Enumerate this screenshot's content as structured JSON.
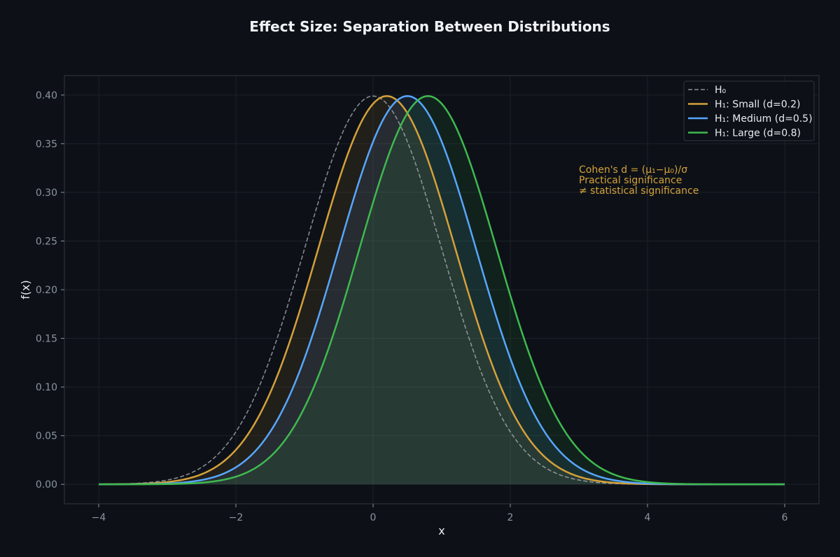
{
  "chart_data": {
    "type": "line",
    "title": "Effect Size: Separation Between Distributions",
    "xlabel": "x",
    "ylabel": "f(x)",
    "xlim": [
      -4.5,
      6.5
    ],
    "ylim": [
      -0.02,
      0.42
    ],
    "xticks": [
      -4,
      -2,
      0,
      2,
      4,
      6
    ],
    "xtick_labels": [
      "−4",
      "−2",
      "0",
      "2",
      "4",
      "6"
    ],
    "yticks": [
      0.0,
      0.05,
      0.1,
      0.15,
      0.2,
      0.25,
      0.3,
      0.35,
      0.4
    ],
    "ytick_labels": [
      "0.00",
      "0.05",
      "0.10",
      "0.15",
      "0.20",
      "0.25",
      "0.30",
      "0.35",
      "0.40"
    ],
    "grid": true,
    "legend_position": "top-right",
    "x_range": [
      -4,
      6
    ],
    "series": [
      {
        "name": "H₀",
        "distribution": "normal",
        "mean": 0.0,
        "sd": 1.0,
        "style": "dashed",
        "color": "#b1b8c0",
        "fill": false
      },
      {
        "name": "H₁: Small (d=0.2)",
        "distribution": "normal",
        "mean": 0.2,
        "sd": 1.0,
        "style": "solid",
        "color": "#d4a13a",
        "fill": true
      },
      {
        "name": "H₁: Medium (d=0.5)",
        "distribution": "normal",
        "mean": 0.5,
        "sd": 1.0,
        "style": "solid",
        "color": "#58a6ff",
        "fill": true
      },
      {
        "name": "H₁: Large (d=0.8)",
        "distribution": "normal",
        "mean": 0.8,
        "sd": 1.0,
        "style": "solid",
        "color": "#3fb950",
        "fill": true
      }
    ],
    "annotation": {
      "lines": [
        "Cohen's d = (μ₁−μ₀)/σ",
        "Practical significance",
        "≠ statistical significance"
      ],
      "x": 3.0,
      "y": 0.32,
      "color": "#d4a13a"
    }
  }
}
